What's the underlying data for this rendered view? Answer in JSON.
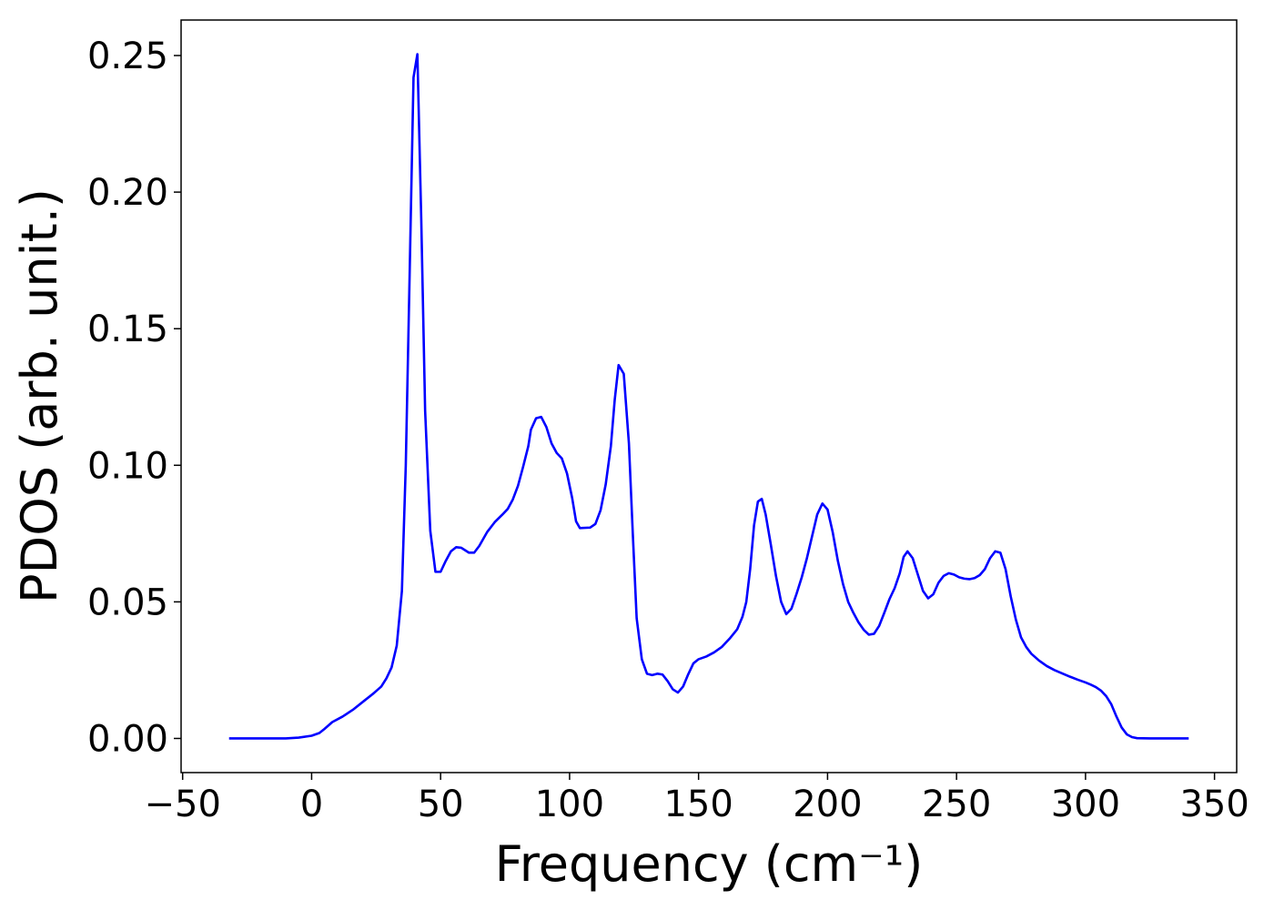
{
  "chart_data": {
    "type": "line",
    "xlabel": "Frequency (cm⁻¹)",
    "ylabel": "PDOS (arb. unit.)",
    "color": "#0000ff",
    "x": [
      -32,
      -10,
      -5,
      0,
      3,
      5,
      8,
      12,
      16,
      20,
      24,
      27,
      29,
      31,
      33,
      35,
      36.5,
      38,
      39.5,
      41,
      42.5,
      44,
      46,
      48,
      50,
      52,
      54,
      56,
      58,
      61,
      63,
      65,
      68,
      71,
      74,
      76,
      78,
      80,
      82,
      84,
      85,
      87,
      89,
      91,
      93,
      95,
      97,
      99,
      101,
      102.5,
      104,
      108,
      110,
      112,
      114,
      116,
      117.5,
      119,
      121,
      123,
      124.5,
      126,
      128,
      130,
      132,
      134,
      136,
      138,
      140,
      142,
      144,
      146,
      148,
      150,
      153,
      156,
      159,
      162,
      165,
      167,
      168.5,
      170,
      171.5,
      173,
      174.5,
      176,
      178,
      180,
      182,
      184,
      186,
      188,
      190,
      192,
      194,
      196,
      198,
      200,
      202,
      204,
      206,
      208,
      210,
      212,
      214,
      216,
      218,
      220,
      222,
      224,
      226,
      228,
      229.5,
      231,
      233,
      235,
      237,
      239,
      241,
      243,
      245,
      247,
      249,
      251,
      253,
      255,
      257,
      259,
      261,
      263,
      265,
      267,
      269,
      271,
      273,
      275,
      277,
      279,
      282,
      285,
      288,
      291,
      294,
      297,
      300,
      302,
      304,
      306,
      308,
      310,
      312,
      314,
      316,
      318,
      320,
      325,
      340
    ],
    "values": [
      0,
      0,
      0.0003,
      0.001,
      0.002,
      0.0035,
      0.006,
      0.008,
      0.0105,
      0.0135,
      0.0165,
      0.019,
      0.022,
      0.026,
      0.034,
      0.054,
      0.1,
      0.17,
      0.242,
      0.2505,
      0.19,
      0.12,
      0.076,
      0.061,
      0.061,
      0.065,
      0.0685,
      0.07,
      0.0698,
      0.068,
      0.068,
      0.0705,
      0.0755,
      0.0792,
      0.082,
      0.084,
      0.0875,
      0.0925,
      0.0995,
      0.107,
      0.113,
      0.1172,
      0.1177,
      0.114,
      0.108,
      0.1045,
      0.1025,
      0.097,
      0.088,
      0.0795,
      0.077,
      0.0772,
      0.0785,
      0.0835,
      0.093,
      0.107,
      0.124,
      0.1367,
      0.1335,
      0.108,
      0.075,
      0.044,
      0.029,
      0.0237,
      0.0232,
      0.0237,
      0.0234,
      0.021,
      0.018,
      0.0168,
      0.019,
      0.0235,
      0.0275,
      0.029,
      0.03,
      0.0315,
      0.0335,
      0.0365,
      0.04,
      0.0445,
      0.05,
      0.062,
      0.078,
      0.0867,
      0.0877,
      0.082,
      0.071,
      0.0595,
      0.05,
      0.0455,
      0.0475,
      0.053,
      0.059,
      0.066,
      0.074,
      0.082,
      0.086,
      0.0838,
      0.0755,
      0.065,
      0.0565,
      0.05,
      0.046,
      0.0425,
      0.0398,
      0.038,
      0.0383,
      0.0412,
      0.046,
      0.051,
      0.055,
      0.0605,
      0.0665,
      0.0685,
      0.066,
      0.06,
      0.054,
      0.0513,
      0.0528,
      0.057,
      0.0595,
      0.0605,
      0.06,
      0.059,
      0.0585,
      0.0583,
      0.0587,
      0.0598,
      0.062,
      0.066,
      0.0685,
      0.068,
      0.062,
      0.052,
      0.0435,
      0.037,
      0.0335,
      0.031,
      0.0285,
      0.0265,
      0.025,
      0.0238,
      0.0226,
      0.0215,
      0.0205,
      0.0197,
      0.0188,
      0.0175,
      0.0155,
      0.0125,
      0.008,
      0.004,
      0.0015,
      0.0005,
      0.0001,
      0,
      0
    ],
    "xlim": [
      -50.6,
      358.6
    ],
    "ylim": [
      -0.0125,
      0.263
    ],
    "xticks": [
      {
        "value": -50,
        "label": "−50"
      },
      0,
      50,
      100,
      150,
      200,
      250,
      300,
      350
    ],
    "yticks": [
      {
        "value": 0,
        "label": "0.00"
      },
      0.05,
      {
        "value": 0.1,
        "label": "0.10"
      },
      0.15,
      {
        "value": 0.2,
        "label": "0.20"
      },
      0.25
    ],
    "grid": false
  }
}
